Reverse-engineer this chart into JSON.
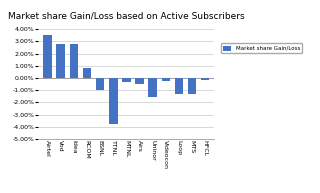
{
  "title": "Market share Gain/Loss based on Active Subscribers",
  "categories": [
    "Airtel",
    "Vod",
    "Idea",
    "RCOM",
    "BSNL",
    "TTNL",
    "MTNL",
    "Airs",
    "Uninor",
    "Videocon",
    "Loop",
    "MTS",
    "HFCL"
  ],
  "values": [
    3.55,
    2.75,
    2.8,
    0.85,
    -1.0,
    -3.8,
    -0.3,
    -0.5,
    -1.55,
    -0.25,
    -1.35,
    -1.35,
    -0.15
  ],
  "bar_color": "#4472C4",
  "legend_label": "Market share Gain/Loss",
  "ylim": [
    -5.0,
    4.5
  ],
  "yticks": [
    -5.0,
    -4.0,
    -3.0,
    -2.0,
    -1.0,
    0.0,
    1.0,
    2.0,
    3.0,
    4.0
  ],
  "background_color": "#FFFFFF",
  "plot_bg_color": "#FFFFFF",
  "grid_color": "#C8C8C8",
  "title_fontsize": 6.5,
  "xlabel_fontsize": 4.5,
  "ylabel_fontsize": 4.5
}
